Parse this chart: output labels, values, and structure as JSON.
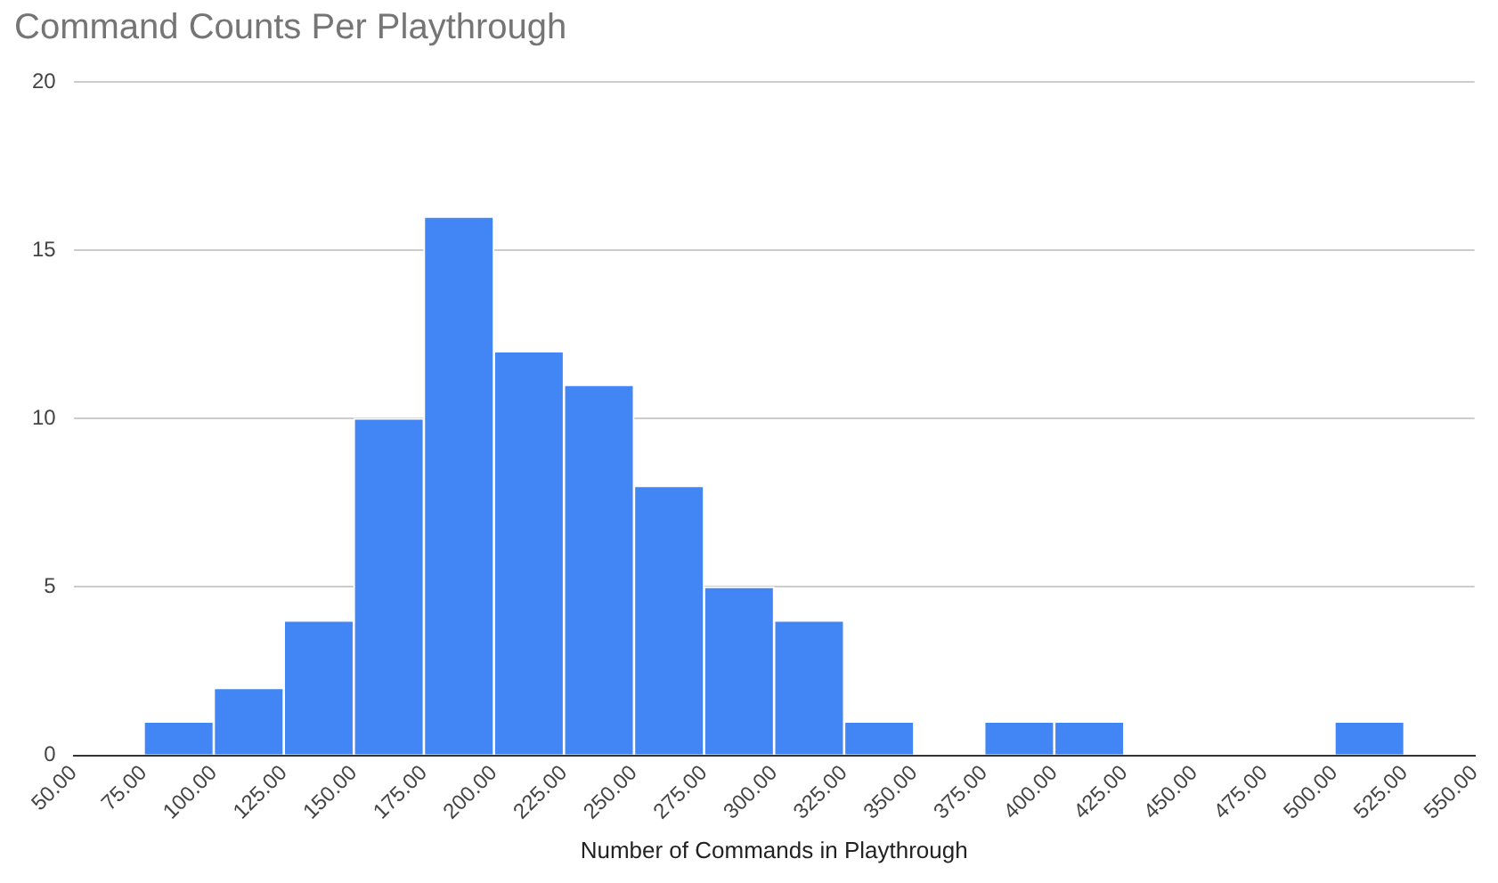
{
  "chart_data": {
    "type": "histogram",
    "title": "Command Counts Per Playthrough",
    "xlabel": "Number of Commands in Playthrough",
    "bins": [
      50,
      75,
      100,
      125,
      150,
      175,
      200,
      225,
      250,
      275,
      300,
      325,
      350,
      375,
      400,
      425,
      450,
      475,
      500,
      525,
      550
    ],
    "values": [
      0,
      1,
      2,
      4,
      10,
      16,
      12,
      11,
      8,
      5,
      4,
      1,
      0,
      1,
      1,
      0,
      0,
      0,
      1,
      0
    ],
    "color": "#4285f4",
    "xlim": [
      50,
      550
    ],
    "xticks": [
      {
        "value": 50,
        "label": "50.00"
      },
      {
        "value": 75,
        "label": "75.00"
      },
      {
        "value": 100,
        "label": "100.00"
      },
      {
        "value": 125,
        "label": "125.00"
      },
      {
        "value": 150,
        "label": "150.00"
      },
      {
        "value": 175,
        "label": "175.00"
      },
      {
        "value": 200,
        "label": "200.00"
      },
      {
        "value": 225,
        "label": "225.00"
      },
      {
        "value": 250,
        "label": "250.00"
      },
      {
        "value": 275,
        "label": "275.00"
      },
      {
        "value": 300,
        "label": "300.00"
      },
      {
        "value": 325,
        "label": "325.00"
      },
      {
        "value": 350,
        "label": "350.00"
      },
      {
        "value": 375,
        "label": "375.00"
      },
      {
        "value": 400,
        "label": "400.00"
      },
      {
        "value": 425,
        "label": "425.00"
      },
      {
        "value": 450,
        "label": "450.00"
      },
      {
        "value": 475,
        "label": "475.00"
      },
      {
        "value": 500,
        "label": "500.00"
      },
      {
        "value": 525,
        "label": "525.00"
      },
      {
        "value": 550,
        "label": "550.00"
      }
    ],
    "ylim": [
      0,
      20
    ],
    "yticks": [
      0,
      5,
      10,
      15,
      20
    ],
    "grid": "y",
    "legend": false
  }
}
